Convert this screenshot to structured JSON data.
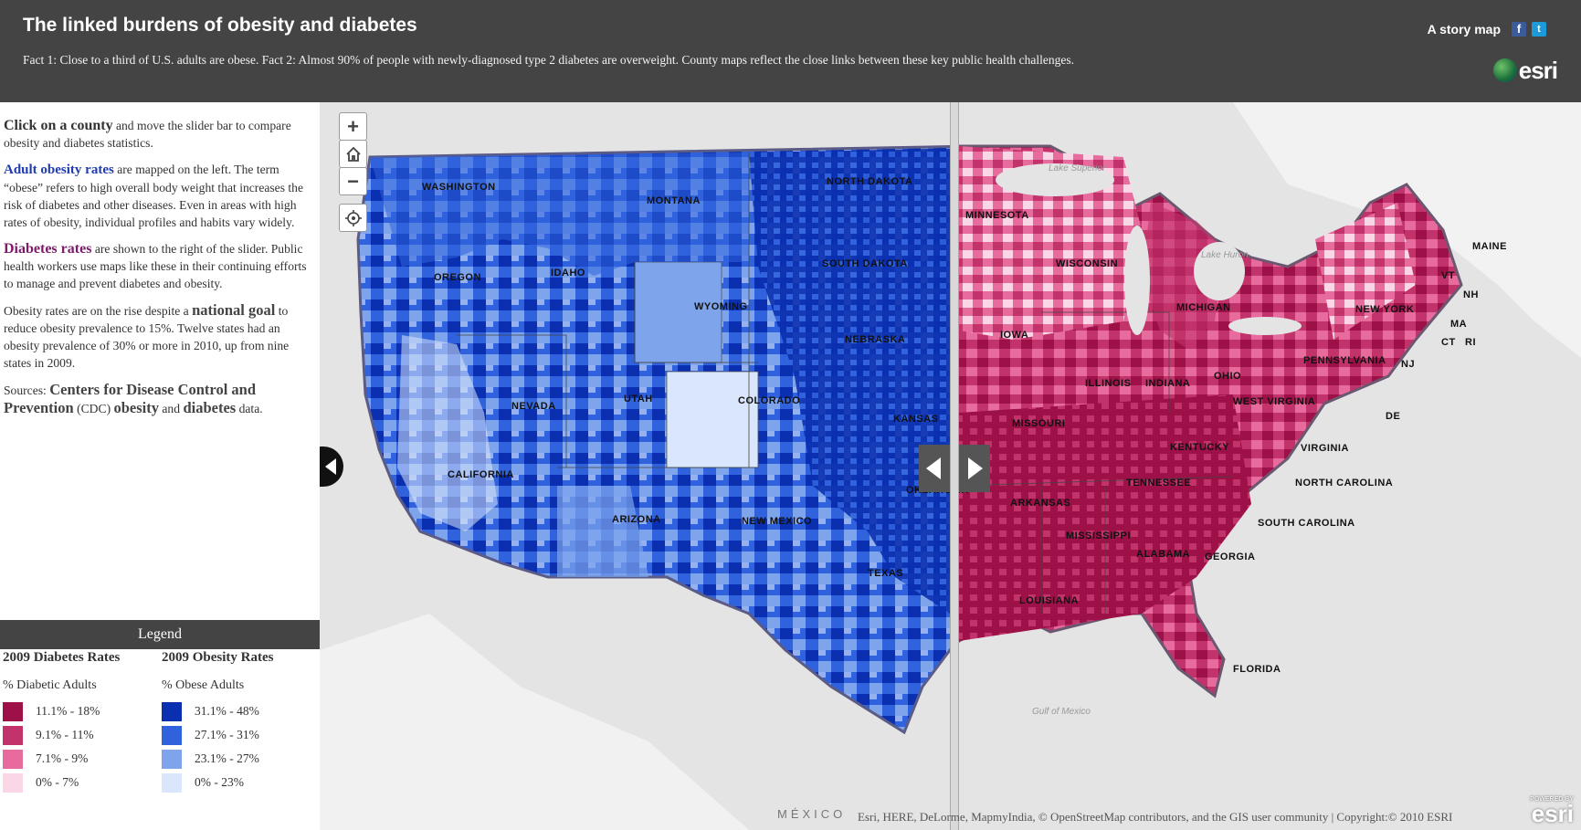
{
  "header": {
    "title": "The linked burdens of obesity and diabetes",
    "subtitle": "Fact 1: Close to a third of U.S. adults are obese. Fact 2: Almost 90% of people with newly-diagnosed type 2 diabetes are overweight. County maps reflect the close links between these key public health challenges.",
    "story_map_label": "A story map",
    "logo_text": "esri",
    "facebook_icon": "f",
    "twitter_icon": "t"
  },
  "sidebar": {
    "p1_bold": "Click on a county",
    "p1_rest": " and move the slider bar to compare obesity and diabetes statistics.",
    "p2_link": "Adult obesity rates",
    "p2_rest": " are mapped on the left. The term “obese” refers to high overall body weight that increases the risk of diabetes and other diseases. Even in areas with high rates of obesity, individual profiles and habits vary widely.",
    "p3_link": "Diabetes rates",
    "p3_rest": " are shown to the right of the slider. Public health workers use maps like these in their continuing efforts to manage and prevent diabetes and obesity.",
    "p4_a": "Obesity rates are on the rise despite a ",
    "p4_bold": "national goal",
    "p4_b": " to reduce obesity prevalence to 15%. Twelve states had an obesity prevalence of 30% or more in 2010, up from nine states in 2009.",
    "p5_a": "Sources: ",
    "p5_link1": "Centers for Disease Control and Prevention",
    "p5_b": " (CDC) ",
    "p5_link2": "obesity",
    "p5_c": " and ",
    "p5_link3": "diabetes",
    "p5_d": " data."
  },
  "legend": {
    "title": "Legend",
    "diabetes": {
      "heading": "2009 Diabetes Rates",
      "subheading": "% Diabetic Adults",
      "items": [
        {
          "label": "11.1% - 18%",
          "color": "#9e1048"
        },
        {
          "label": "9.1% - 11%",
          "color": "#c2336b"
        },
        {
          "label": "7.1% - 9%",
          "color": "#e86b9e"
        },
        {
          "label": "0% - 7%",
          "color": "#fbd6e6"
        }
      ]
    },
    "obesity": {
      "heading": "2009 Obesity Rates",
      "subheading": "% Obese Adults",
      "items": [
        {
          "label": "31.1% - 48%",
          "color": "#0a2fb0"
        },
        {
          "label": "27.1% - 31%",
          "color": "#2f62dc"
        },
        {
          "label": "23.1% - 27%",
          "color": "#7ea4ec"
        },
        {
          "label": "0% - 23%",
          "color": "#d9e6fb"
        }
      ]
    }
  },
  "map": {
    "zoom_in": "+",
    "zoom_out": "−",
    "attribution": "Esri, HERE, DeLorme, MapmyIndia, © OpenStreetMap contributors, and the GIS user community | Copyright:© 2010 ESRI",
    "mexico_label": "MÉXICO",
    "powered_by": "POWERED BY",
    "powered_logo": "esri",
    "water": {
      "lake_superior": "Lake Superior",
      "lake_huron": "Lake Huron",
      "gulf": "Gulf of Mexico"
    },
    "states_left": [
      "WASHINGTON",
      "MONTANA",
      "NORTH DAKOTA",
      "OREGON",
      "IDAHO",
      "SOUTH DAKOTA",
      "WYOMING",
      "NEBRASKA",
      "NEVADA",
      "UTAH",
      "COLORADO",
      "KANSAS",
      "CALIFORNIA",
      "OKLAHOMA",
      "ARIZONA",
      "NEW MEXICO",
      "TEXAS"
    ],
    "states_right": [
      "MINNESOTA",
      "WISCONSIN",
      "MICHIGAN",
      "IOWA",
      "ILLINOIS",
      "INDIANA",
      "OHIO",
      "MISSOURI",
      "KENTUCKY",
      "WEST VIRGINIA",
      "VIRGINIA",
      "TENNESSEE",
      "NORTH CAROLINA",
      "ARKANSAS",
      "SOUTH CAROLINA",
      "MISSISSIPPI",
      "ALABAMA",
      "GEORGIA",
      "LOUISIANA",
      "FLORIDA",
      "NEW YORK",
      "PENNSYLVANIA",
      "MAINE",
      "VT",
      "NH",
      "MA",
      "CT",
      "RI",
      "NJ",
      "DE"
    ]
  }
}
